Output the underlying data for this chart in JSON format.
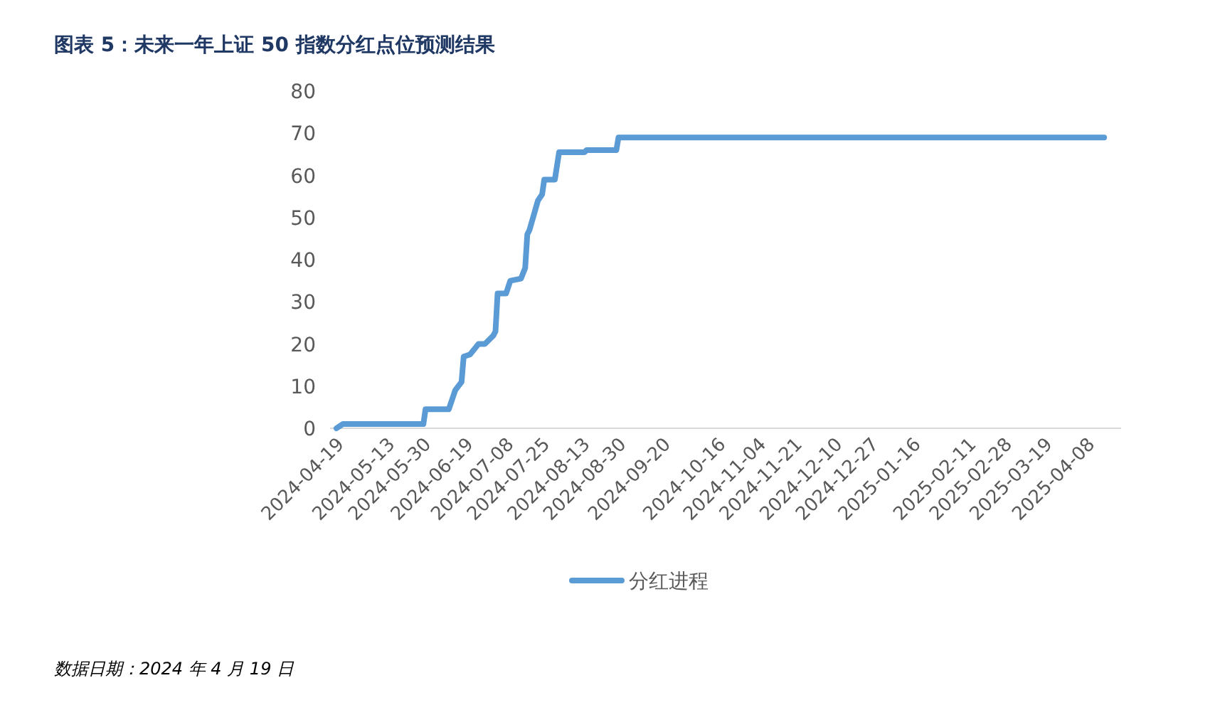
{
  "chart_data": {
    "type": "line",
    "title": "图表 5：未来一年上证 50 指数分红点位预测结果",
    "annotations": [
      "数据日期：2024 年 4 月 19 日"
    ],
    "x": [
      "2024-04-19",
      "2024-04-22",
      "2024-05-30",
      "2024-05-31",
      "2024-06-11",
      "2024-06-14",
      "2024-06-17",
      "2024-06-18",
      "2024-06-21",
      "2024-06-25",
      "2024-06-28",
      "2024-07-02",
      "2024-07-03",
      "2024-07-04",
      "2024-07-08",
      "2024-07-10",
      "2024-07-15",
      "2024-07-17",
      "2024-07-18",
      "2024-07-19",
      "2024-07-23",
      "2024-07-25",
      "2024-07-26",
      "2024-07-31",
      "2024-08-02",
      "2024-08-14",
      "2024-08-15",
      "2024-08-29",
      "2024-08-30",
      "2025-04-16"
    ],
    "series": [
      {
        "name": "分红进程",
        "color": "#5b9bd5",
        "values": [
          0,
          1,
          1,
          4.5,
          4.5,
          9,
          11,
          17,
          17.5,
          20,
          20,
          22,
          23,
          32,
          32,
          35,
          35.5,
          38,
          46,
          47,
          54,
          55.5,
          59,
          59,
          65.5,
          65.5,
          66,
          66,
          69,
          69
        ]
      }
    ],
    "xlim": [
      "2024-04-16",
      "2025-04-24"
    ],
    "ylim": [
      0,
      80
    ],
    "yticks": [
      0,
      10,
      20,
      30,
      40,
      50,
      60,
      70,
      80
    ],
    "xticks": [
      "2024-04-19",
      "2024-05-13",
      "2024-05-30",
      "2024-06-19",
      "2024-07-08",
      "2024-07-25",
      "2024-08-13",
      "2024-08-30",
      "2024-09-20",
      "2024-10-16",
      "2024-11-04",
      "2024-11-21",
      "2024-12-10",
      "2024-12-27",
      "2025-01-16",
      "2025-02-11",
      "2025-02-28",
      "2025-03-19",
      "2025-04-08"
    ],
    "grid": false,
    "legend": "bottom",
    "marker": "none",
    "line_style": "solid"
  }
}
